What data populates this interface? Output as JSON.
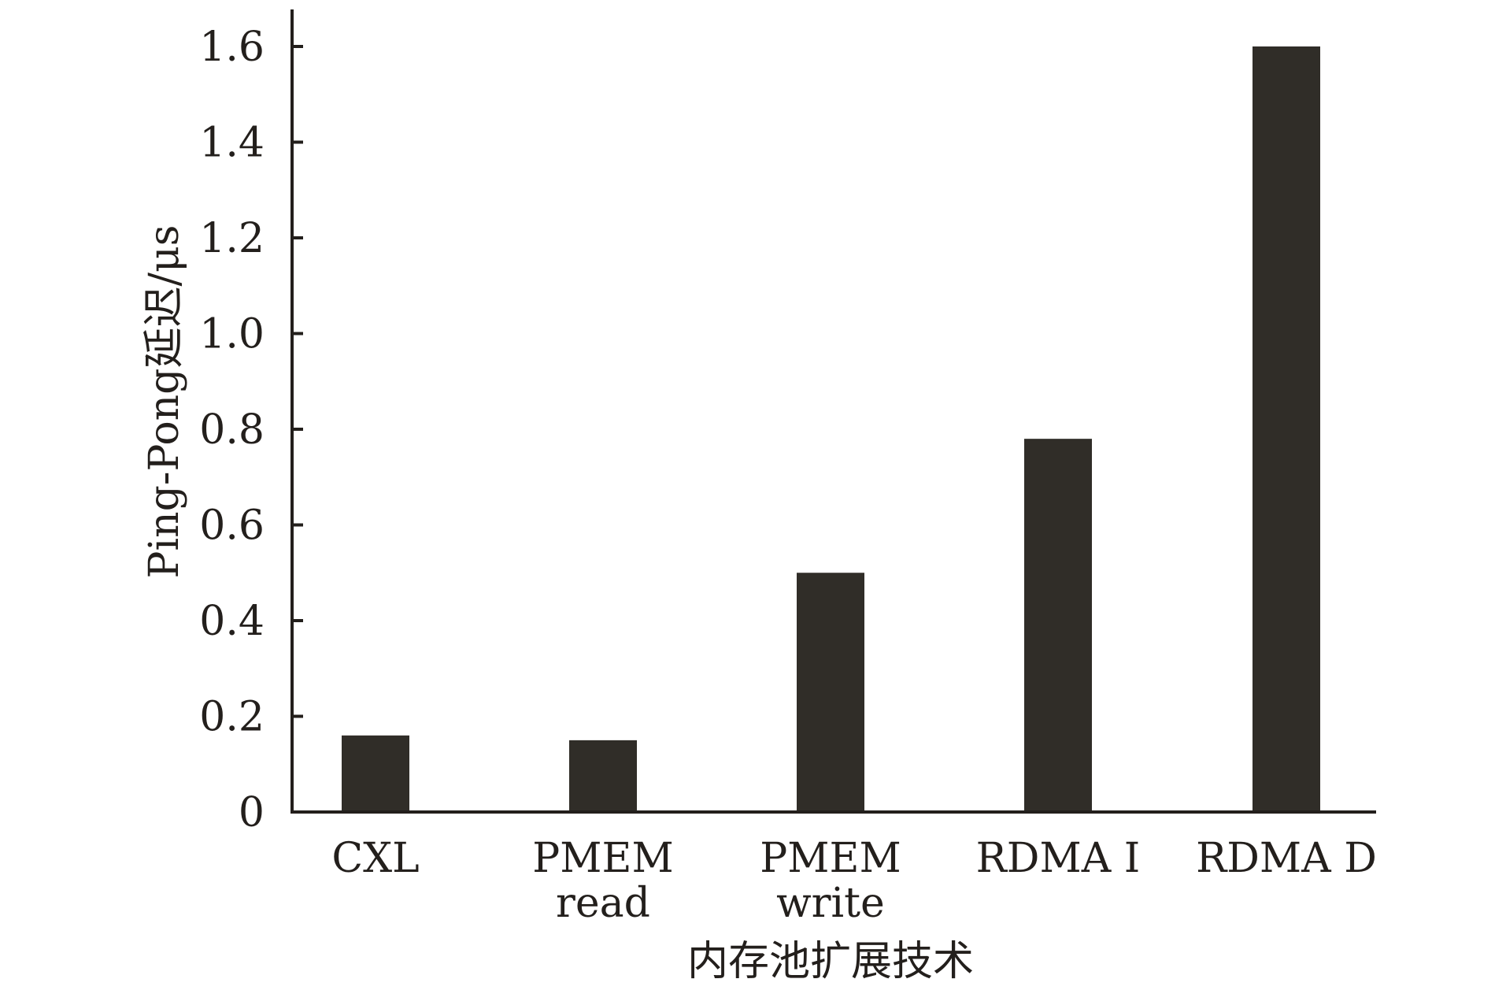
{
  "colors": {
    "bar": "#302d28",
    "axis": "#231f1c",
    "background": "#ffffff"
  },
  "chart_data": {
    "type": "bar",
    "title": "",
    "xlabel": "内存池扩展技术",
    "ylabel": "Ping-Pong延迟/μs",
    "categories": [
      [
        "CXL"
      ],
      [
        "PMEM",
        "read"
      ],
      [
        "PMEM",
        "write"
      ],
      [
        "RDMA I"
      ],
      [
        "RDMA D"
      ]
    ],
    "values": [
      0.16,
      0.15,
      0.5,
      0.78,
      1.6
    ],
    "ylim": [
      0,
      1.68
    ],
    "yticks": [
      0,
      0.2,
      0.4,
      0.6,
      0.8,
      1.0,
      1.2,
      1.4,
      1.6
    ],
    "ytick_labels": [
      "0",
      "0.2",
      "0.4",
      "0.6",
      "0.8",
      "1.0",
      "1.2",
      "1.4",
      "1.6"
    ],
    "grid": false,
    "legend": "none"
  }
}
